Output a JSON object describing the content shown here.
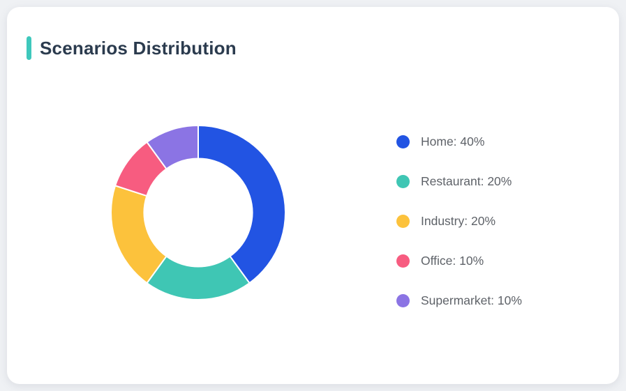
{
  "card": {
    "title": "Scenarios Distribution",
    "accent_color": "#3EC8BC"
  },
  "chart_data": {
    "type": "pie",
    "title": "Scenarios Distribution",
    "donut": true,
    "start_angle_deg": 0,
    "direction": "clockwise",
    "inner_radius_ratio": 0.62,
    "slice_gap_color": "#ffffff",
    "legend_position": "right",
    "series": [
      {
        "name": "Home",
        "value": 40,
        "color": "#2254E3",
        "legend_label": "Home: 40%"
      },
      {
        "name": "Restaurant",
        "value": 20,
        "color": "#3FC6B4",
        "legend_label": "Restaurant: 20%"
      },
      {
        "name": "Industry",
        "value": 20,
        "color": "#FCC23C",
        "legend_label": "Industry: 20%"
      },
      {
        "name": "Office",
        "value": 10,
        "color": "#F75C80",
        "legend_label": "Office: 10%"
      },
      {
        "name": "Supermarket",
        "value": 10,
        "color": "#8B74E4",
        "legend_label": "Supermarket: 10%"
      }
    ]
  }
}
